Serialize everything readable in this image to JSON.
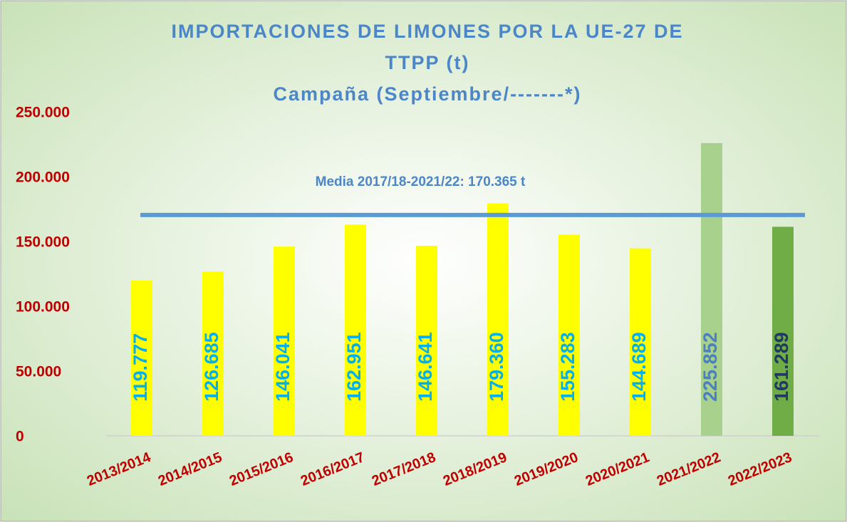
{
  "chart_data": {
    "type": "bar",
    "title": [
      "IMPORTACIONES DE LIMONES POR LA UE-27 DE",
      "TTPP (t)",
      "Campaña (Septiembre/-------*)"
    ],
    "categories": [
      "2013/2014",
      "2014/2015",
      "2015/2016",
      "2016/2017",
      "2017/2018",
      "2018/2019",
      "2019/2020",
      "2020/2021",
      "2021/2022",
      "2022/2023"
    ],
    "values": [
      119777,
      126685,
      146041,
      162951,
      146641,
      179360,
      155283,
      144689,
      225852,
      161289
    ],
    "value_labels": [
      "119.777",
      "126.685",
      "146.041",
      "162.951",
      "146.641",
      "179.360",
      "155.283",
      "144.689",
      "225.852",
      "161.289"
    ],
    "colors": [
      "#ffff00",
      "#ffff00",
      "#ffff00",
      "#ffff00",
      "#ffff00",
      "#ffff00",
      "#ffff00",
      "#ffff00",
      "#a9d18e",
      "#70ad47"
    ],
    "label_colors": [
      "#00b0f0",
      "#00b0f0",
      "#00b0f0",
      "#00b0f0",
      "#00b0f0",
      "#00b0f0",
      "#00b0f0",
      "#00b0f0",
      "#4a7fc1",
      "#1f3864"
    ],
    "ylim": [
      0,
      250000
    ],
    "yticks": [
      0,
      {
        "value": 50000,
        "label": "50.000"
      },
      {
        "value": 100000,
        "label": "100.000"
      },
      {
        "value": 150000,
        "label": "150.000"
      },
      {
        "value": 200000,
        "label": "200.000"
      },
      {
        "value": 250000,
        "label": "250.000"
      }
    ],
    "grid": false,
    "reference_line": {
      "value": 170365,
      "label": "Media 2017/18-2021/22: 170.365 t",
      "color": "#5b9bd5"
    }
  }
}
